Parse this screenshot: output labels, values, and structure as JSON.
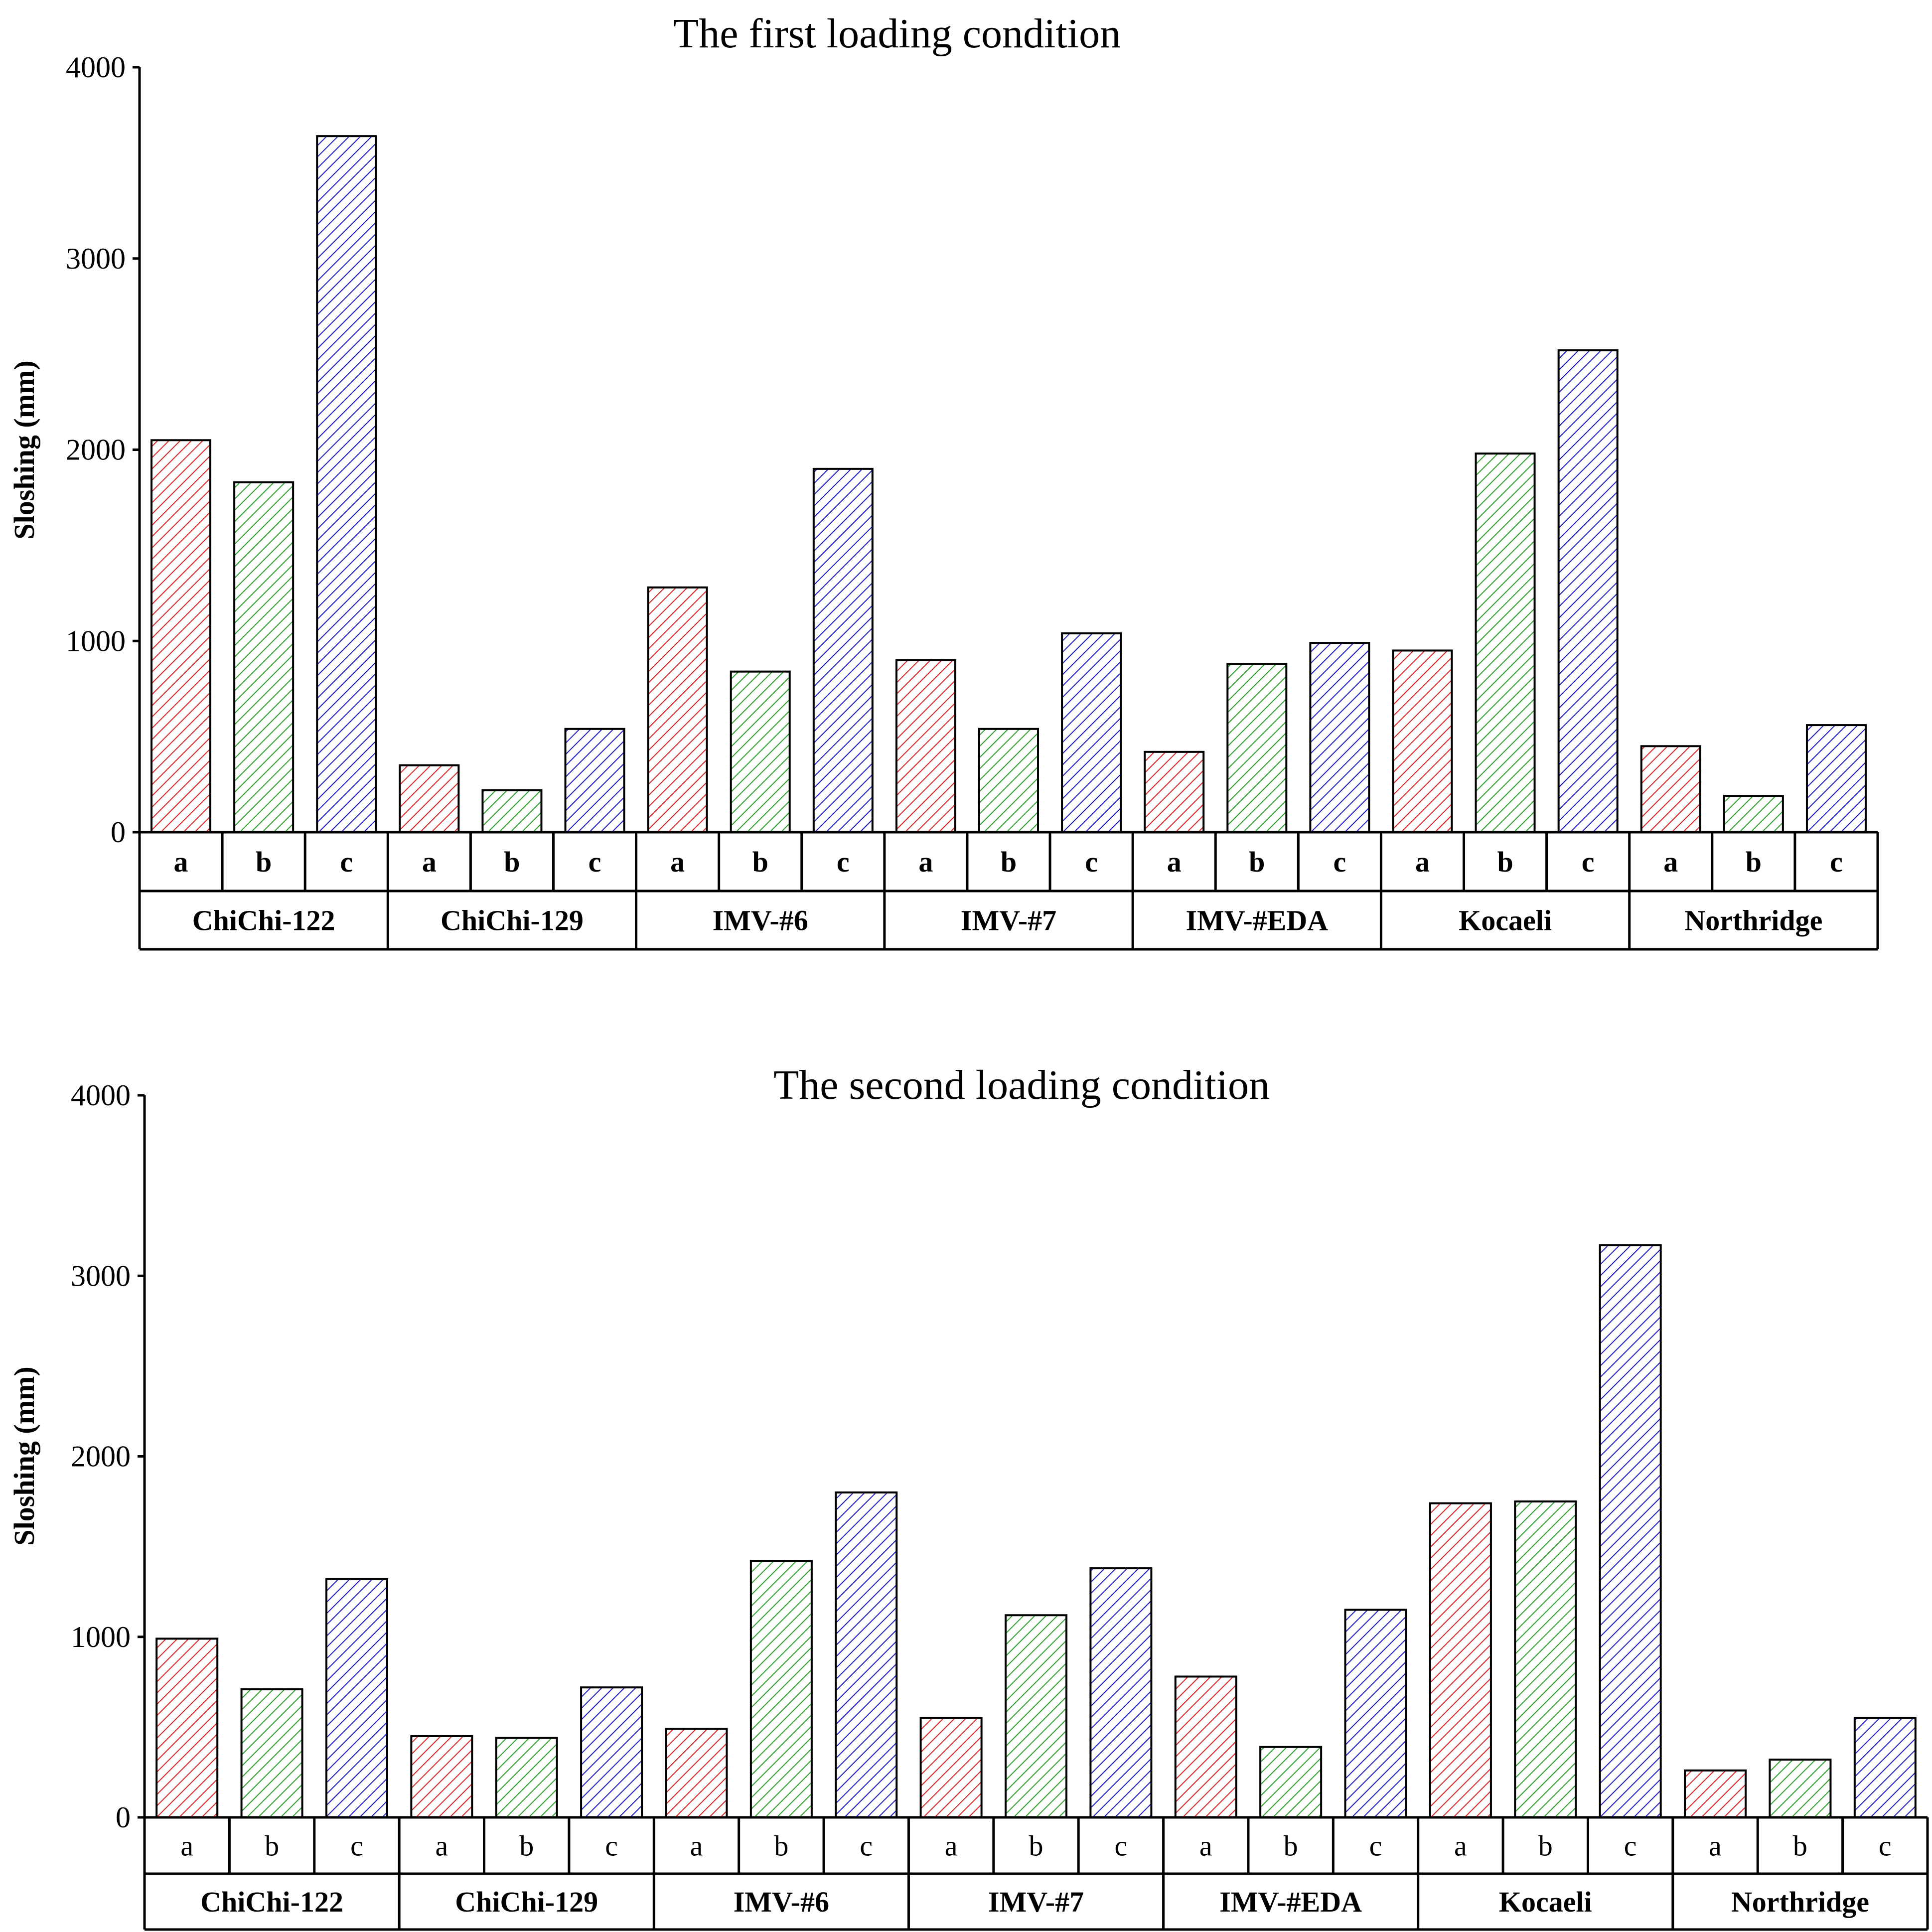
{
  "chart_data": [
    {
      "type": "bar",
      "title": "The first loading condition",
      "ylabel": "Sloshing (mm)",
      "ylim": [
        0,
        4000
      ],
      "yticks": [
        0,
        1000,
        2000,
        3000,
        4000
      ],
      "categories": [
        "ChiChi-122",
        "ChiChi-129",
        "IMV-#6",
        "IMV-#7",
        "IMV-#EDA",
        "Kocaeli",
        "Northridge"
      ],
      "subcategories": [
        "a",
        "b",
        "c"
      ],
      "series": [
        {
          "name": "a",
          "color": "#d62728",
          "values": [
            2050,
            350,
            1280,
            900,
            420,
            950,
            450
          ]
        },
        {
          "name": "b",
          "color": "#2ca02c",
          "values": [
            1830,
            220,
            840,
            540,
            880,
            1980,
            190
          ]
        },
        {
          "name": "c",
          "color": "#1f1fbf",
          "values": [
            3640,
            540,
            1900,
            1040,
            990,
            2520,
            560
          ]
        }
      ]
    },
    {
      "type": "bar",
      "title": "The second loading condition",
      "ylabel": "Sloshing (mm)",
      "ylim": [
        0,
        4000
      ],
      "yticks": [
        0,
        1000,
        2000,
        3000,
        4000
      ],
      "categories": [
        "ChiChi-122",
        "ChiChi-129",
        "IMV-#6",
        "IMV-#7",
        "IMV-#EDA",
        "Kocaeli",
        "Northridge"
      ],
      "subcategories": [
        "a",
        "b",
        "c"
      ],
      "series": [
        {
          "name": "a",
          "color": "#d62728",
          "values": [
            990,
            450,
            490,
            550,
            780,
            1740,
            260
          ]
        },
        {
          "name": "b",
          "color": "#2ca02c",
          "values": [
            710,
            440,
            1420,
            1120,
            390,
            1750,
            320
          ]
        },
        {
          "name": "c",
          "color": "#1f1fbf",
          "values": [
            1320,
            720,
            1800,
            1380,
            1150,
            3170,
            550
          ]
        }
      ]
    }
  ]
}
